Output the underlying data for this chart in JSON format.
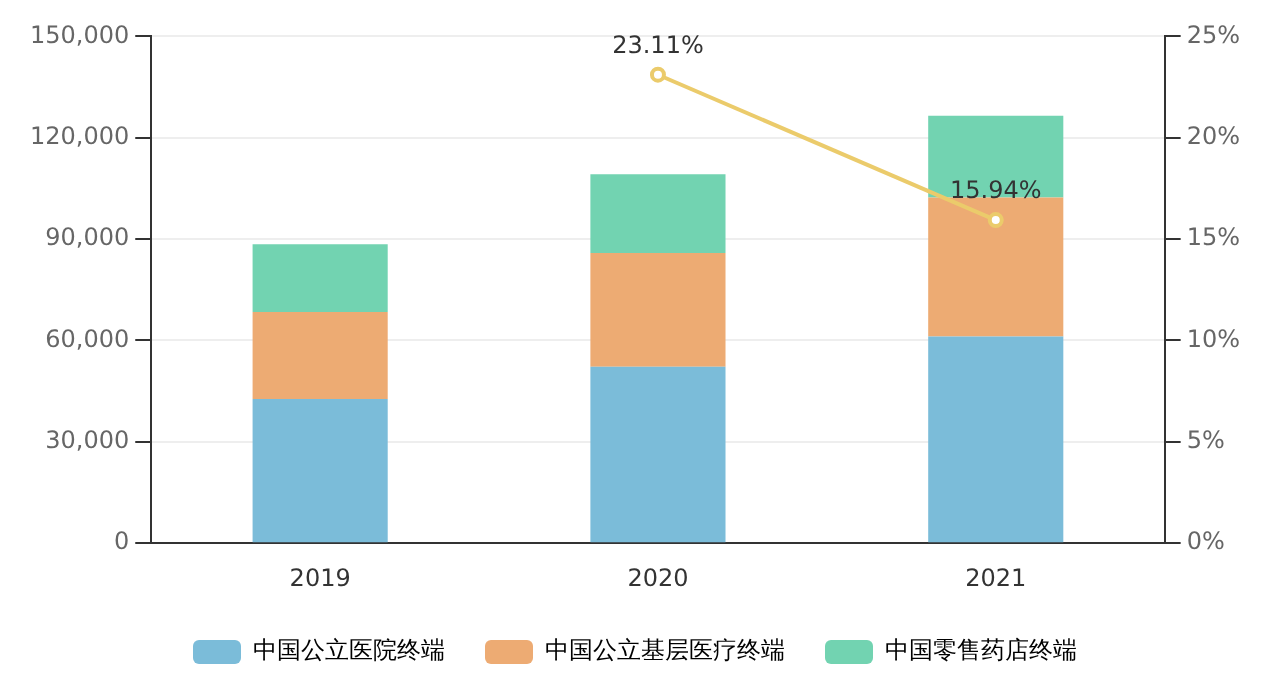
{
  "chart_data": {
    "type": "bar",
    "stacked": true,
    "categories": [
      "2019",
      "2020",
      "2021"
    ],
    "series": [
      {
        "name": "中国公立医院终端",
        "color": "#7bbcd9",
        "values": [
          42700,
          52200,
          61200
        ]
      },
      {
        "name": "中国公立基层医疗终端",
        "color": "#edab73",
        "values": [
          25700,
          33700,
          41100
        ]
      },
      {
        "name": "中国零售药店终端",
        "color": "#72d3b1",
        "values": [
          20100,
          23300,
          24200
        ]
      },
      {
        "type": "line",
        "axis": "y2",
        "color": "#ebcb6b",
        "values": [
          null,
          23.11,
          15.94
        ],
        "value_labels": [
          null,
          "23.11%",
          "15.94%"
        ],
        "marker": "circle"
      }
    ],
    "ylim": [
      0,
      150000
    ],
    "yticks": [
      {
        "value": 0,
        "label": "0"
      },
      {
        "value": 30000,
        "label": "30,000"
      },
      {
        "value": 60000,
        "label": "60,000"
      },
      {
        "value": 90000,
        "label": "90,000"
      },
      {
        "value": 120000,
        "label": "120,000"
      },
      {
        "value": 150000,
        "label": "150,000"
      }
    ],
    "y2lim": [
      0,
      25
    ],
    "y2ticks": [
      {
        "value": 0,
        "label": "0%"
      },
      {
        "value": 5,
        "label": "5%"
      },
      {
        "value": 10,
        "label": "10%"
      },
      {
        "value": 15,
        "label": "15%"
      },
      {
        "value": 20,
        "label": "20%"
      },
      {
        "value": 25,
        "label": "25%"
      }
    ],
    "grid": "y",
    "legend": "bottom"
  }
}
